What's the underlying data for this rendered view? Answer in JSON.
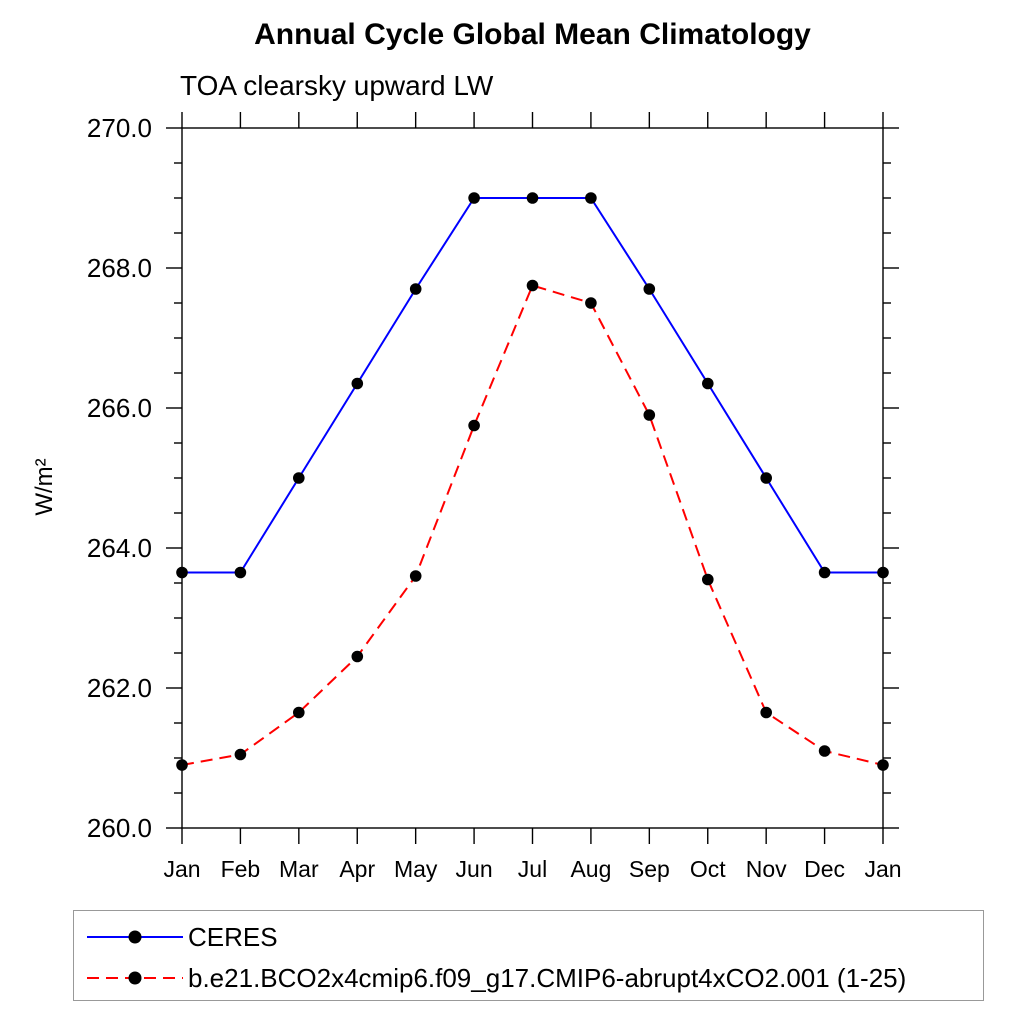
{
  "title": "Annual Cycle Global Mean Climatology",
  "subtitle": "TOA clearsky upward LW",
  "chart_data": {
    "type": "line",
    "title": "Annual Cycle Global Mean Climatology",
    "subtitle": "TOA clearsky upward LW",
    "ylabel": "W/m²",
    "xlabel": "",
    "ylim": [
      260.0,
      270.0
    ],
    "y_major_ticks": [
      "260.0",
      "262.0",
      "264.0",
      "266.0",
      "268.0",
      "270.0"
    ],
    "y_minor_step": 0.5,
    "grid": false,
    "legend_position": "bottom-box",
    "marker_color": "#000000",
    "axis_color": "#000000",
    "x_categories": [
      "Jan",
      "Feb",
      "Mar",
      "Apr",
      "May",
      "Jun",
      "Jul",
      "Aug",
      "Sep",
      "Oct",
      "Nov",
      "Dec",
      "Jan"
    ],
    "series": [
      {
        "name": "CERES",
        "color": "#0000ff",
        "line_style": "solid",
        "marker": "filled-circle",
        "values": [
          263.65,
          263.65,
          265.0,
          266.35,
          267.7,
          269.0,
          269.0,
          269.0,
          267.7,
          266.35,
          265.0,
          263.65,
          263.65
        ]
      },
      {
        "name": "b.e21.BCO2x4cmip6.f09_g17.CMIP6-abrupt4xCO2.001 (1-25)",
        "color": "#ff0000",
        "line_style": "dashed",
        "marker": "filled-circle",
        "values": [
          260.9,
          261.05,
          261.65,
          262.45,
          263.6,
          265.75,
          267.75,
          267.5,
          265.9,
          263.55,
          261.65,
          261.1,
          260.9
        ]
      }
    ]
  }
}
